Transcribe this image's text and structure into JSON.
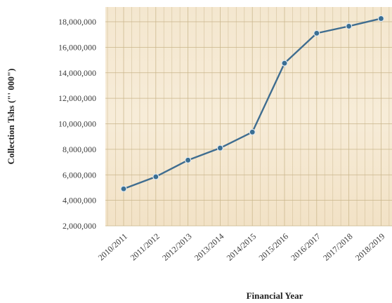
{
  "chart_data": {
    "type": "line",
    "title": "",
    "xlabel": "Financial Year",
    "ylabel": "Collection Tshs (\"' 000\")",
    "categories": [
      "2010/2011",
      "2011/2012",
      "2012/2013",
      "2013/2014",
      "2014/2015",
      "2015/2016",
      "2016/2017",
      "2017/2018",
      "2018/2019"
    ],
    "series": [
      {
        "values": [
          4900000,
          5850000,
          7150000,
          8100000,
          9350000,
          14750000,
          17100000,
          17650000,
          18250000
        ]
      }
    ],
    "ylim": [
      2000000,
      18000000
    ],
    "yticks": [
      2000000,
      4000000,
      6000000,
      8000000,
      10000000,
      12000000,
      14000000,
      16000000,
      18000000
    ],
    "ytick_labels": [
      "2,000,000",
      "4,000,000",
      "6,000,000",
      "8,000,000",
      "10,000,000",
      "12,000,000",
      "14,000,000",
      "16,000,000",
      "18,000,000"
    ],
    "grid": true,
    "legend": "none",
    "colors": {
      "line": "#3f6d90",
      "marker": "#3a6e93",
      "marker_edge": "#dfe9f1",
      "plot_bg_top": "#f3e6ce",
      "plot_bg_bottom": "#f7ead3",
      "grid": "#c9b58a"
    }
  }
}
